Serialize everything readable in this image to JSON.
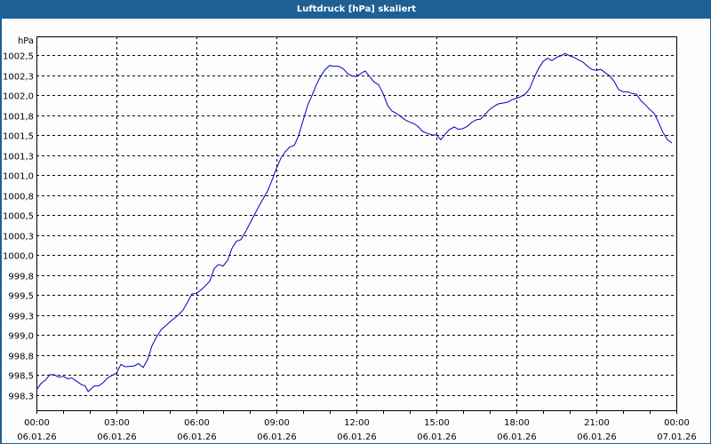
{
  "window": {
    "title": "Luftdruck [hPa] skaliert"
  },
  "colors": {
    "titlebar": "#1e6094",
    "title_text": "#ffffff",
    "background": "#fcfdfc",
    "line": "#0000c0",
    "grid": "#000000"
  },
  "chart_data": {
    "type": "line",
    "title": "Luftdruck [hPa] skaliert",
    "xlabel": "",
    "ylabel": "hPa",
    "ylim": [
      998.06,
      1002.73
    ],
    "xlim_hours": [
      0,
      24
    ],
    "grid": true,
    "legend": null,
    "y_ticks": [
      {
        "value": 1002.5,
        "label": "1002,5"
      },
      {
        "value": 1002.25,
        "label": "1002,3"
      },
      {
        "value": 1002.0,
        "label": "1002,0"
      },
      {
        "value": 1001.75,
        "label": "1001,8"
      },
      {
        "value": 1001.5,
        "label": "1001,5"
      },
      {
        "value": 1001.25,
        "label": "1001,3"
      },
      {
        "value": 1001.0,
        "label": "1001,0"
      },
      {
        "value": 1000.75,
        "label": "1000,8"
      },
      {
        "value": 1000.5,
        "label": "1000,5"
      },
      {
        "value": 1000.25,
        "label": "1000,3"
      },
      {
        "value": 1000.0,
        "label": "1000,0"
      },
      {
        "value": 999.75,
        "label": "999,8"
      },
      {
        "value": 999.5,
        "label": "999,5"
      },
      {
        "value": 999.25,
        "label": "999,3"
      },
      {
        "value": 999.0,
        "label": "999,0"
      },
      {
        "value": 998.75,
        "label": "998,8"
      },
      {
        "value": 998.5,
        "label": "998,5"
      },
      {
        "value": 998.25,
        "label": "998,3"
      }
    ],
    "x_ticks": [
      {
        "hour": 0,
        "time": "00:00",
        "date": "06.01.26"
      },
      {
        "hour": 3,
        "time": "03:00",
        "date": "06.01.26"
      },
      {
        "hour": 6,
        "time": "06:00",
        "date": "06.01.26"
      },
      {
        "hour": 9,
        "time": "09:00",
        "date": "06.01.26"
      },
      {
        "hour": 12,
        "time": "12:00",
        "date": "06.01.26"
      },
      {
        "hour": 15,
        "time": "15:00",
        "date": "06.01.26"
      },
      {
        "hour": 18,
        "time": "18:00",
        "date": "06.01.26"
      },
      {
        "hour": 21,
        "time": "21:00",
        "date": "06.01.26"
      },
      {
        "hour": 24,
        "time": "00:00",
        "date": "07.01.26"
      }
    ],
    "series": [
      {
        "name": "Luftdruck",
        "unit": "hPa",
        "x": [
          0,
          0.17,
          0.33,
          0.5,
          0.67,
          0.83,
          1,
          1.17,
          1.33,
          1.5,
          1.67,
          1.83,
          1.94,
          2.17,
          2.33,
          2.5,
          2.67,
          2.83,
          3,
          3.17,
          3.33,
          3.67,
          3.83,
          4,
          4.17,
          4.33,
          4.5,
          4.67,
          5,
          5.33,
          5.5,
          5.67,
          5.83,
          6,
          6.17,
          6.33,
          6.5,
          6.67,
          6.83,
          7,
          7.17,
          7.33,
          7.5,
          7.67,
          7.83,
          8,
          8.33,
          8.67,
          8.83,
          9,
          9.17,
          9.33,
          9.5,
          9.67,
          9.83,
          10,
          10.17,
          10.33,
          10.5,
          10.67,
          10.83,
          11,
          11.17,
          11.33,
          11.5,
          11.67,
          11.83,
          12,
          12.17,
          12.33,
          12.5,
          12.67,
          12.83,
          13,
          13.17,
          13.33,
          13.5,
          13.67,
          13.83,
          14,
          14.17,
          14.33,
          14.5,
          14.67,
          14.83,
          15,
          15.17,
          15.33,
          15.5,
          15.67,
          15.83,
          16,
          16.17,
          16.33,
          16.5,
          16.67,
          16.83,
          17,
          17.17,
          17.33,
          17.5,
          17.67,
          17.83,
          18,
          18.17,
          18.33,
          18.5,
          18.67,
          18.83,
          19,
          19.17,
          19.33,
          19.5,
          19.67,
          19.83,
          20,
          20.17,
          20.33,
          20.5,
          20.67,
          20.83,
          21,
          21.17,
          21.33,
          21.5,
          21.67,
          21.83,
          22,
          22.17,
          22.33,
          22.5,
          22.67,
          22.83,
          23,
          23.17,
          23.33,
          23.5,
          23.67,
          23.83
        ],
        "values": [
          998.31,
          998.39,
          998.43,
          998.5,
          998.5,
          998.47,
          998.48,
          998.45,
          998.46,
          998.42,
          998.38,
          998.36,
          998.29,
          998.36,
          998.36,
          998.4,
          998.46,
          998.49,
          998.52,
          998.63,
          998.6,
          998.61,
          998.64,
          998.59,
          998.69,
          998.86,
          998.97,
          999.06,
          999.16,
          999.25,
          999.31,
          999.41,
          999.51,
          999.52,
          999.56,
          999.61,
          999.67,
          999.83,
          999.88,
          999.86,
          999.93,
          1000.08,
          1000.17,
          1000.19,
          1000.28,
          1000.39,
          1000.6,
          1000.8,
          1000.93,
          1001.08,
          1001.21,
          1001.29,
          1001.35,
          1001.37,
          1001.49,
          1001.68,
          1001.87,
          1001.99,
          1002.13,
          1002.24,
          1002.32,
          1002.37,
          1002.36,
          1002.36,
          1002.33,
          1002.27,
          1002.24,
          1002.23,
          1002.27,
          1002.3,
          1002.23,
          1002.16,
          1002.13,
          1002.02,
          1001.87,
          1001.8,
          1001.77,
          1001.73,
          1001.69,
          1001.66,
          1001.64,
          1001.6,
          1001.54,
          1001.52,
          1001.5,
          1001.5,
          1001.44,
          1001.51,
          1001.57,
          1001.6,
          1001.57,
          1001.58,
          1001.61,
          1001.66,
          1001.69,
          1001.7,
          1001.76,
          1001.82,
          1001.86,
          1001.89,
          1001.9,
          1001.91,
          1001.94,
          1001.96,
          1001.98,
          1002.01,
          1002.08,
          1002.22,
          1002.33,
          1002.42,
          1002.46,
          1002.43,
          1002.47,
          1002.49,
          1002.52,
          1002.49,
          1002.47,
          1002.44,
          1002.41,
          1002.36,
          1002.32,
          1002.31,
          1002.32,
          1002.28,
          1002.24,
          1002.17,
          1002.07,
          1002.04,
          1002.04,
          1002.02,
          1002.01,
          1001.93,
          1001.88,
          1001.82,
          1001.77,
          1001.66,
          1001.53,
          1001.44,
          1001.4
        ]
      }
    ]
  }
}
